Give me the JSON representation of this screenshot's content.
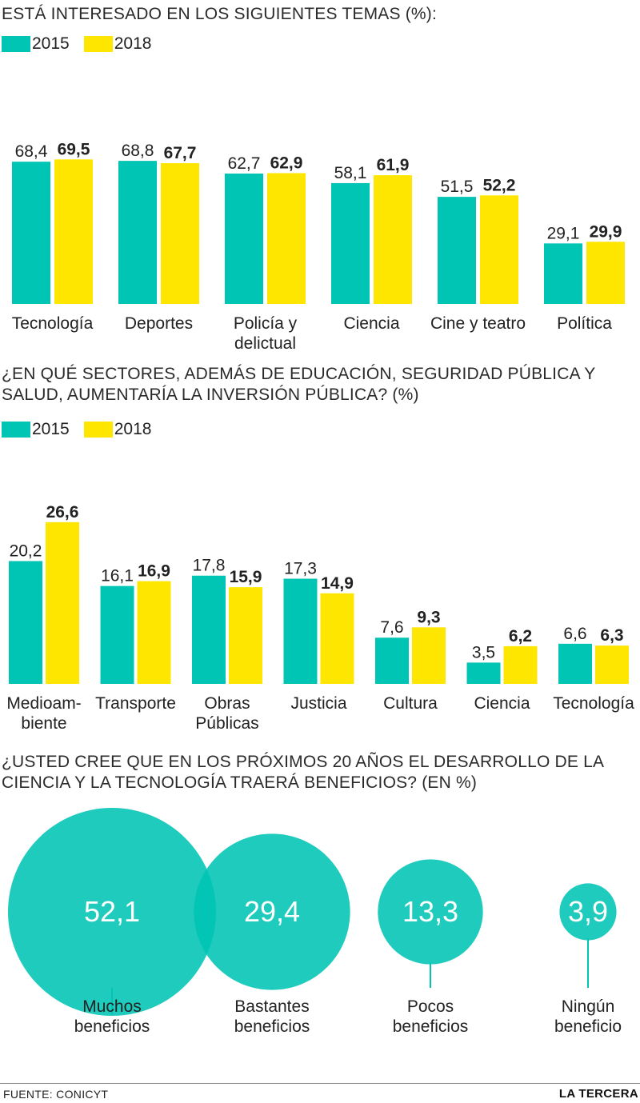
{
  "colors": {
    "y2015": "#00c4b4",
    "y2018": "#ffe600",
    "text": "#222222"
  },
  "legend": {
    "a": "2015",
    "b": "2018"
  },
  "footer": {
    "source": "FUENTE: CONICYT",
    "brand": "LA TERCERA"
  },
  "chart_data": [
    {
      "type": "bar",
      "title": "ESTÁ INTERESADO EN LOS SIGUIENTES TEMAS (%):",
      "categories": [
        "Tecnología",
        "Deportes",
        "Policía y\ndelictual",
        "Ciencia",
        "Cine y teatro",
        "Política"
      ],
      "series": [
        {
          "name": "2015",
          "values": [
            68.4,
            68.8,
            62.7,
            58.1,
            51.5,
            29.1
          ],
          "labels": [
            "68,4",
            "68,8",
            "62,7",
            "58,1",
            "51,5",
            "29,1"
          ]
        },
        {
          "name": "2018",
          "values": [
            69.5,
            67.7,
            62.9,
            61.9,
            52.2,
            29.9
          ],
          "labels": [
            "69,5",
            "67,7",
            "62,9",
            "61,9",
            "52,2",
            "29,9"
          ]
        }
      ],
      "ylim": [
        0,
        100
      ],
      "grid": false,
      "legend": "top-left"
    },
    {
      "type": "bar",
      "title": "¿EN QUÉ SECTORES, ADEMÁS DE EDUCACIÓN, SEGURIDAD PÚBLICA Y\nSALUD, AUMENTARÍA LA INVERSIÓN PÚBLICA? (%)",
      "categories": [
        "Medioam-\nbiente",
        "Transporte",
        "Obras\nPúblicas",
        "Justicia",
        "Cultura",
        "Ciencia",
        "Tecnología"
      ],
      "series": [
        {
          "name": "2015",
          "values": [
            20.2,
            16.1,
            17.8,
            17.3,
            7.6,
            3.5,
            6.6
          ],
          "labels": [
            "20,2",
            "16,1",
            "17,8",
            "17,3",
            "7,6",
            "3,5",
            "6,6"
          ]
        },
        {
          "name": "2018",
          "values": [
            26.6,
            16.9,
            15.9,
            14.9,
            9.3,
            6.2,
            6.3
          ],
          "labels": [
            "26,6",
            "16,9",
            "15,9",
            "14,9",
            "9,3",
            "6,2",
            "6,3"
          ]
        }
      ],
      "ylim": [
        0,
        30
      ],
      "grid": false,
      "legend": "top-left"
    },
    {
      "type": "bubble",
      "title": "¿USTED CREE QUE EN LOS PRÓXIMOS 20 AÑOS EL DESARROLLO DE LA\nCIENCIA Y LA TECNOLOGÍA TRAERÁ BENEFICIOS? (EN %)",
      "categories": [
        "Muchos\nbeneficios",
        "Bastantes\nbeneficios",
        "Pocos\nbeneficios",
        "Ningún\nbeneficio"
      ],
      "values": [
        52.1,
        29.4,
        13.3,
        3.9
      ],
      "labels": [
        "52,1",
        "29,4",
        "13,3",
        "3,9"
      ]
    }
  ]
}
